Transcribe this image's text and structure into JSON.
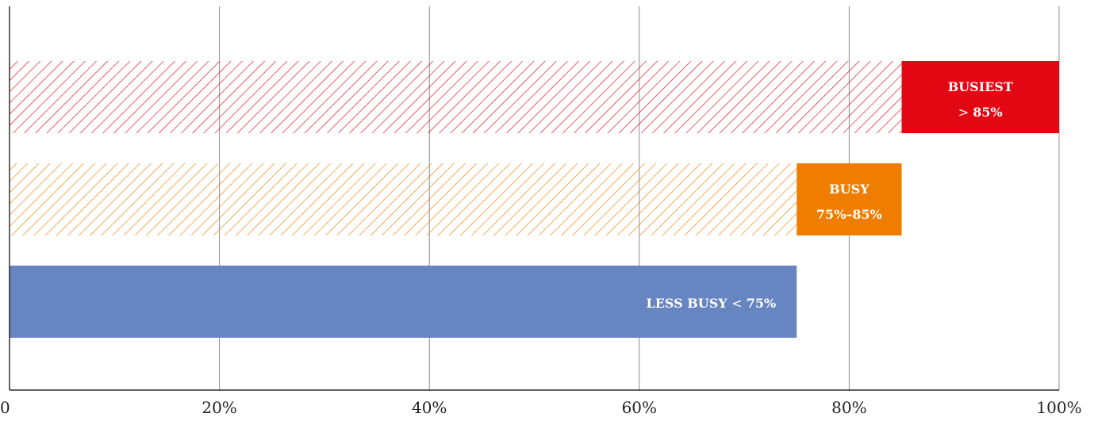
{
  "chart_data": {
    "type": "bar",
    "orientation": "horizontal",
    "xlim": [
      0,
      100
    ],
    "x_ticks": [
      {
        "value": 0,
        "label": "0"
      },
      {
        "value": 20,
        "label": "20%"
      },
      {
        "value": 40,
        "label": "40%"
      },
      {
        "value": 60,
        "label": "60%"
      },
      {
        "value": 80,
        "label": "80%"
      },
      {
        "value": 100,
        "label": "100%"
      }
    ],
    "grid": "vertical",
    "title": "",
    "xlabel": "",
    "ylabel": "",
    "bars": [
      {
        "name": "BUSIEST",
        "range_label": "> 85%",
        "hatched_from": 0,
        "hatched_to": 85,
        "solid_from": 85,
        "solid_to": 100,
        "color": "#e30613"
      },
      {
        "name": "BUSY",
        "range_label": "75%–85%",
        "hatched_from": 0,
        "hatched_to": 75,
        "solid_from": 75,
        "solid_to": 85,
        "color": "#ef7d00"
      },
      {
        "name": "LESS BUSY",
        "range_label": "< 75%",
        "hatched_from": 0,
        "hatched_to": 0,
        "solid_from": 0,
        "solid_to": 75,
        "color": "#6785c1"
      }
    ],
    "colors": {
      "grid": "#8c8c8c",
      "axis": "#000000",
      "label_text": "#ffffff"
    }
  }
}
